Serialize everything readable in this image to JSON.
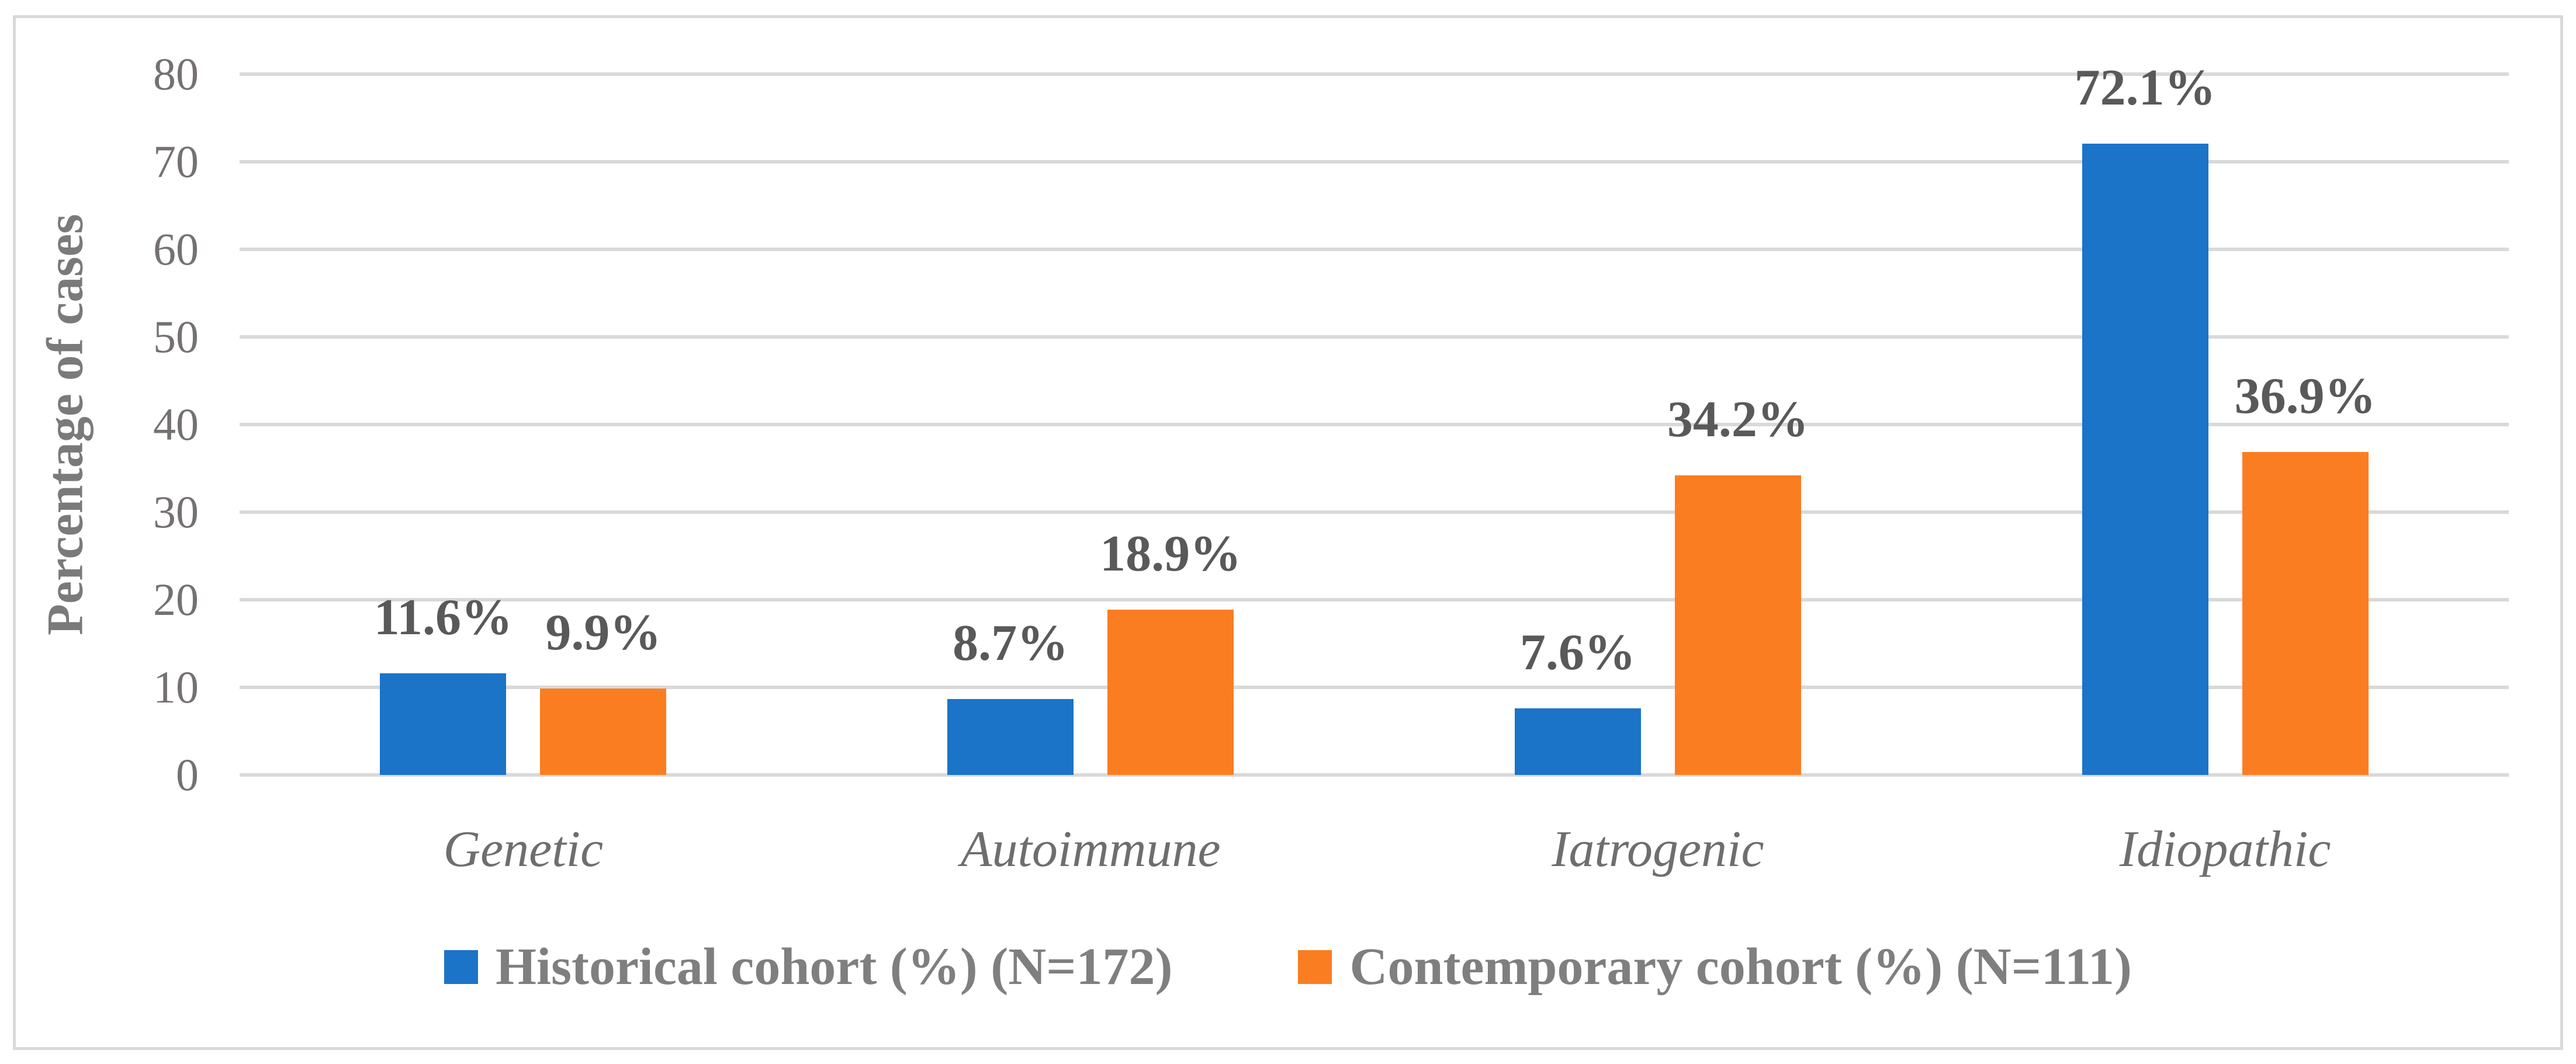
{
  "figure": {
    "background_color": "#FFFFFF",
    "border_color": "#D9D9D9"
  },
  "chart_data": {
    "type": "bar",
    "title": "",
    "xlabel": "",
    "ylabel": "Percentage of cases",
    "categories": [
      "Genetic",
      "Autoimmune",
      "Iatrogenic",
      "Idiopathic"
    ],
    "series": [
      {
        "name": "Historical cohort (%) (N=172)",
        "color": "#1B74C8",
        "values": [
          11.6,
          8.7,
          7.6,
          72.1
        ],
        "data_labels": [
          "11.6%",
          "8.7%",
          "7.6%",
          "72.1%"
        ]
      },
      {
        "name": "Contemporary cohort (%) (N=111)",
        "color": "#FB7D21",
        "values": [
          9.9,
          18.9,
          34.2,
          36.9
        ],
        "data_labels": [
          "9.9%",
          "18.9%",
          "34.2%",
          "36.9%"
        ]
      }
    ],
    "ylim": [
      0,
      80
    ],
    "yticks": [
      "0",
      "10",
      "20",
      "30",
      "40",
      "50",
      "60",
      "70",
      "80"
    ],
    "grid": "horizontal",
    "gridline_color": "#D9D9D9",
    "legend_position": "bottom",
    "data_label_color": "#595959",
    "axis_text_color": "#767171"
  }
}
